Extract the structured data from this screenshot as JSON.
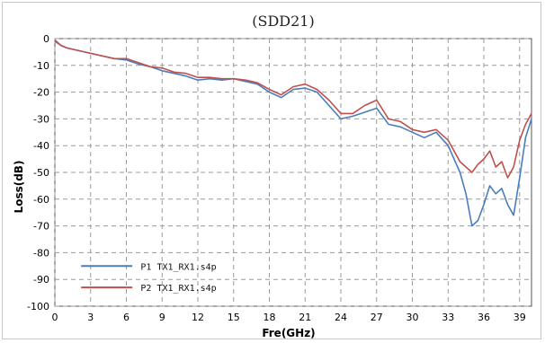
{
  "chart_data": {
    "type": "line",
    "title": "(SDD21)",
    "xlabel": "Fre(GHz)",
    "ylabel": "Loss(dB)",
    "xlim": [
      0,
      40
    ],
    "ylim": [
      -100,
      0
    ],
    "xticks": [
      0,
      3,
      6,
      9,
      12,
      15,
      18,
      21,
      24,
      27,
      30,
      33,
      36,
      39
    ],
    "yticks": [
      0,
      -10,
      -20,
      -30,
      -40,
      -50,
      -60,
      -70,
      -80,
      -90,
      -100
    ],
    "grid": true,
    "legend_position": "bottom-left",
    "series": [
      {
        "name": "P1 TX1_RX1.s4p",
        "color": "#4a7ebb",
        "x": [
          0,
          0.5,
          1,
          2,
          3,
          4,
          5,
          6,
          7,
          8,
          9,
          10,
          11,
          12,
          13,
          14,
          15,
          16,
          17,
          18,
          19,
          20,
          21,
          22,
          23,
          24,
          25,
          26,
          27,
          28,
          29,
          30,
          31,
          32,
          33,
          34,
          34.5,
          35,
          35.5,
          36,
          36.5,
          37,
          37.5,
          38,
          38.5,
          39,
          39.5,
          40
        ],
        "y": [
          -1,
          -2.5,
          -3.5,
          -4.5,
          -5.5,
          -6.5,
          -7.5,
          -8,
          -9.5,
          -10.5,
          -12,
          -13,
          -14,
          -15.5,
          -15,
          -15.5,
          -15,
          -16,
          -17,
          -20,
          -22,
          -19,
          -18.5,
          -20,
          -25,
          -30,
          -29,
          -27.5,
          -26,
          -32,
          -33,
          -35,
          -37,
          -35,
          -40,
          -50,
          -58,
          -70,
          -68,
          -62,
          -55,
          -58,
          -56,
          -62,
          -66,
          -52,
          -37,
          -30
        ]
      },
      {
        "name": "P2 TX1_RX1.s4p",
        "color": "#c0504d",
        "x": [
          0,
          0.5,
          1,
          2,
          3,
          4,
          5,
          6,
          7,
          8,
          9,
          10,
          11,
          12,
          13,
          14,
          15,
          16,
          17,
          18,
          19,
          20,
          21,
          22,
          23,
          24,
          25,
          26,
          27,
          28,
          29,
          30,
          31,
          32,
          33,
          34,
          34.5,
          35,
          35.5,
          36,
          36.5,
          37,
          37.5,
          38,
          38.5,
          39,
          39.5,
          40
        ],
        "y": [
          -0.5,
          -2.5,
          -3.5,
          -4.5,
          -5.5,
          -6.5,
          -7.5,
          -7.5,
          -9,
          -10.5,
          -11,
          -12.5,
          -13,
          -14.5,
          -14.5,
          -15,
          -15,
          -15.5,
          -16.5,
          -19,
          -21,
          -18,
          -17,
          -19,
          -23,
          -28,
          -28,
          -25,
          -23,
          -30,
          -31,
          -34,
          -35,
          -34,
          -38,
          -46,
          -48,
          -50,
          -47,
          -45,
          -42,
          -48,
          -46,
          -52,
          -48,
          -38,
          -32,
          -28
        ]
      }
    ]
  }
}
